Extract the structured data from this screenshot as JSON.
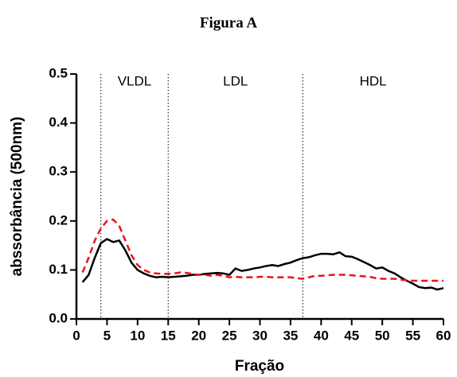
{
  "chart_data": {
    "type": "line",
    "title": "Figura A",
    "xlabel": "Fração",
    "ylabel": "abssorbância (500nm)",
    "x": [
      1,
      2,
      3,
      4,
      5,
      6,
      7,
      8,
      9,
      10,
      11,
      12,
      13,
      14,
      15,
      16,
      17,
      18,
      19,
      20,
      21,
      22,
      23,
      24,
      25,
      26,
      27,
      28,
      29,
      30,
      31,
      32,
      33,
      34,
      35,
      36,
      37,
      38,
      39,
      40,
      41,
      42,
      43,
      44,
      45,
      46,
      47,
      48,
      49,
      50,
      51,
      52,
      53,
      54,
      55,
      56,
      57,
      58,
      59,
      60
    ],
    "series": [
      {
        "color": "#000000",
        "dash": false,
        "values": [
          0.075,
          0.09,
          0.125,
          0.155,
          0.163,
          0.157,
          0.16,
          0.14,
          0.115,
          0.1,
          0.093,
          0.088,
          0.085,
          0.086,
          0.085,
          0.086,
          0.087,
          0.088,
          0.09,
          0.09,
          0.092,
          0.093,
          0.094,
          0.093,
          0.09,
          0.103,
          0.098,
          0.1,
          0.103,
          0.105,
          0.108,
          0.11,
          0.108,
          0.112,
          0.115,
          0.12,
          0.124,
          0.126,
          0.13,
          0.133,
          0.133,
          0.132,
          0.136,
          0.128,
          0.127,
          0.122,
          0.116,
          0.11,
          0.103,
          0.105,
          0.098,
          0.093,
          0.085,
          0.078,
          0.072,
          0.065,
          0.063,
          0.064,
          0.06,
          0.063
        ]
      },
      {
        "color": "#e8141b",
        "dash": true,
        "values": [
          0.095,
          0.125,
          0.16,
          0.185,
          0.2,
          0.203,
          0.19,
          0.16,
          0.13,
          0.11,
          0.1,
          0.095,
          0.093,
          0.092,
          0.092,
          0.093,
          0.095,
          0.094,
          0.092,
          0.09,
          0.09,
          0.088,
          0.09,
          0.088,
          0.085,
          0.086,
          0.085,
          0.085,
          0.085,
          0.086,
          0.086,
          0.085,
          0.085,
          0.085,
          0.085,
          0.083,
          0.082,
          0.085,
          0.088,
          0.088,
          0.089,
          0.09,
          0.09,
          0.09,
          0.089,
          0.088,
          0.087,
          0.086,
          0.083,
          0.082,
          0.082,
          0.082,
          0.08,
          0.079,
          0.078,
          0.078,
          0.078,
          0.078,
          0.078,
          0.078
        ]
      }
    ],
    "xlim": [
      0,
      60
    ],
    "xticks": [
      0,
      5,
      10,
      15,
      20,
      25,
      30,
      35,
      40,
      45,
      50,
      55,
      60
    ],
    "ylim": [
      0,
      0.5
    ],
    "yticks": [
      {
        "value": 0,
        "label": "0.0"
      },
      0.1,
      0.2,
      0.3,
      0.4,
      0.5
    ],
    "vlines": [
      4,
      15,
      37
    ],
    "regions": [
      "VLDL",
      "LDL",
      "HDL"
    ]
  }
}
